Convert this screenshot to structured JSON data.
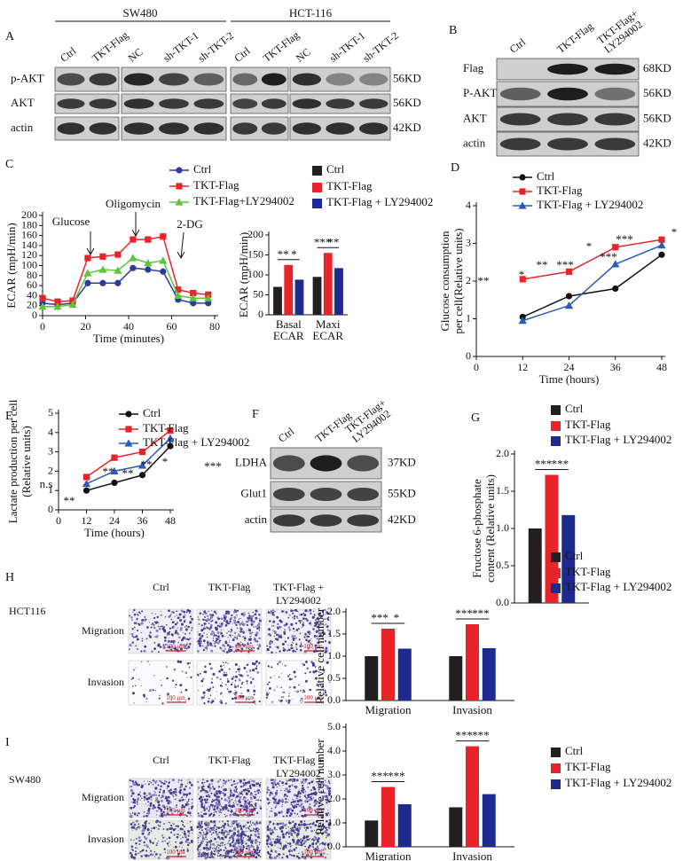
{
  "blots": [
    {
      "label": "A",
      "groups": [
        "SW480",
        "HCT-116"
      ],
      "lanes": [
        "Ctrl",
        "TKT-Flag",
        "NC",
        "sh-TKT-1",
        "sh-TKT-2",
        "Ctrl",
        "TKT-Flag",
        "NC",
        "sh-TKT-1",
        "sh-TKT-2"
      ],
      "rows": [
        "p-AKT",
        "AKT",
        "actin"
      ],
      "sizes": [
        "56KD",
        "56KD",
        "42KD"
      ]
    },
    {
      "label": "B",
      "lanes": [
        "Ctrl",
        "TKT-Flag",
        [
          "TKT-Flag+",
          "LY294002"
        ]
      ],
      "rows": [
        "Flag",
        "P-AKT",
        "AKT",
        "actin"
      ],
      "sizes": [
        "68KD",
        "56KD",
        "56KD",
        "42KD"
      ]
    },
    {
      "label": "F",
      "lanes": [
        "Ctrl",
        "TKT-Flag",
        [
          "TKT-Flag+",
          "LY294002"
        ]
      ],
      "rows": [
        "LDHA",
        "Glut1",
        "actin"
      ],
      "sizes": [
        "37KD",
        "55KD",
        "42KD"
      ]
    }
  ],
  "micrographs": [
    {
      "label": "H",
      "cell": "HCT116",
      "columns": [
        "Ctrl",
        "TKT-Flag",
        [
          "TKT-Flag +",
          "LY294002"
        ]
      ],
      "rows": [
        "Migration",
        "Invasion"
      ],
      "scale_bar": "100 μm"
    },
    {
      "label": "I",
      "cell": "SW480",
      "columns": [
        "Ctrl",
        "TKT-Flag",
        [
          "TKT-Flag +",
          "LY294002"
        ]
      ],
      "rows": [
        "Migration",
        "Invasion"
      ],
      "scale_bar": "100 μm"
    }
  ],
  "chart_data": [
    {
      "type": "line",
      "panel": "C",
      "x": [
        0,
        7,
        14,
        21,
        28,
        35,
        42,
        49,
        56,
        63,
        70,
        77
      ],
      "xlim": [
        0,
        80
      ],
      "xticks": [
        0,
        20,
        40,
        60,
        80
      ],
      "ylim": [
        0,
        200
      ],
      "yticks": [
        0,
        20,
        40,
        60,
        80,
        100,
        120,
        140,
        160,
        180,
        200
      ],
      "xlabel": "Time (minutes)",
      "ylabel": "ECAR (mpH/min)",
      "annotations": [
        "Glucose",
        "Oligomycin",
        "2-DG"
      ],
      "series": [
        {
          "name": "Ctrl",
          "color": "#2a3d9e",
          "marker": "circle",
          "values": [
            25,
            22,
            25,
            65,
            65,
            65,
            95,
            92,
            88,
            32,
            25,
            25
          ]
        },
        {
          "name": "TKT-Flag",
          "color": "#e8232a",
          "marker": "square",
          "values": [
            35,
            28,
            30,
            115,
            118,
            122,
            152,
            152,
            158,
            52,
            45,
            42
          ]
        },
        {
          "name": "TKT-Flag+LY294002",
          "color": "#5cc639",
          "marker": "triangle",
          "values": [
            18,
            18,
            22,
            85,
            92,
            90,
            115,
            105,
            110,
            40,
            35,
            35
          ]
        }
      ]
    },
    {
      "type": "bar",
      "categories": [
        [
          "Basal",
          "ECAR"
        ],
        [
          "Maxi",
          "ECAR"
        ]
      ],
      "ylim": [
        0,
        200
      ],
      "yticks": [
        0,
        50,
        100,
        150,
        200
      ],
      "ylabel": "ECAR (mpH/min)",
      "annotations": [
        "**",
        "*",
        "***",
        "**"
      ],
      "series": [
        {
          "name": "Ctrl",
          "color": "#231f20",
          "values": [
            70,
            95
          ]
        },
        {
          "name": "TKT-Flag",
          "color": "#e8232a",
          "values": [
            125,
            155
          ]
        },
        {
          "name": "TKT-Flag + LY294002",
          "color": "#1f2a8f",
          "values": [
            88,
            117
          ]
        }
      ]
    },
    {
      "type": "line",
      "panel": "D",
      "x": [
        12,
        24,
        36,
        48
      ],
      "xlim": [
        0,
        48
      ],
      "xticks": [
        0,
        12,
        24,
        36,
        48
      ],
      "ylim": [
        0,
        4
      ],
      "yticks": [
        0,
        1,
        2,
        3,
        4
      ],
      "xlabel": "Time (hours)",
      "ylabel": [
        "Glucose consumption",
        "per cell(Relative units)"
      ],
      "annotations": [
        "**",
        "*",
        "**",
        "***",
        "*",
        "***",
        "***",
        "*"
      ],
      "series": [
        {
          "name": "Ctrl",
          "color": "#111111",
          "marker": "circle",
          "values": [
            1.05,
            1.6,
            1.8,
            2.7
          ]
        },
        {
          "name": "TKT-Flag",
          "color": "#e8232a",
          "marker": "square",
          "values": [
            2.05,
            2.25,
            2.9,
            3.1
          ]
        },
        {
          "name": "TKT-Flag + LY294002",
          "color": "#2a5cb8",
          "marker": "triangle",
          "values": [
            0.95,
            1.35,
            2.45,
            2.95
          ]
        }
      ]
    },
    {
      "type": "line",
      "panel": "E",
      "x": [
        12,
        24,
        36,
        48
      ],
      "xlim": [
        0,
        48
      ],
      "xticks": [
        0,
        12,
        24,
        36,
        48
      ],
      "ylim": [
        0,
        5
      ],
      "yticks": [
        0,
        1,
        2,
        3,
        4,
        5
      ],
      "xlabel": "Time (hours)",
      "ylabel": [
        "Lactate production per cell",
        "(Relative units)"
      ],
      "annotations": [
        "n.s",
        "**",
        "**",
        "**",
        "**",
        "*",
        "***"
      ],
      "series": [
        {
          "name": "Ctrl",
          "color": "#111111",
          "marker": "circle",
          "values": [
            1.0,
            1.4,
            1.8,
            3.3
          ]
        },
        {
          "name": "TKT-Flag",
          "color": "#e8232a",
          "marker": "square",
          "values": [
            1.7,
            2.7,
            3.0,
            4.1
          ]
        },
        {
          "name": "TKT-Flag + LY294002",
          "color": "#2a5cb8",
          "marker": "triangle",
          "values": [
            1.35,
            2.0,
            2.3,
            3.7
          ]
        }
      ]
    },
    {
      "type": "bar",
      "panel": "G",
      "ylim": [
        0,
        2
      ],
      "yticks": [
        {
          "value": 0,
          "label": "0.0"
        },
        0.5,
        {
          "value": 1,
          "label": "1.0"
        },
        1.5,
        {
          "value": 2,
          "label": "2.0"
        }
      ],
      "ylabel": [
        "Fructose 6-phosphate",
        "content (Relative units)"
      ],
      "annotations": [
        "***",
        "***"
      ],
      "series": [
        {
          "name": "Ctrl",
          "color": "#231f20",
          "values": [
            1
          ]
        },
        {
          "name": "TKT-Flag",
          "color": "#e8232a",
          "values": [
            1.72
          ]
        },
        {
          "name": "TKT-Flag + LY294002",
          "color": "#1f2a8f",
          "values": [
            1.18
          ]
        }
      ]
    },
    {
      "type": "bar",
      "categories": [
        "Migration",
        "Invasion"
      ],
      "ylim": [
        0,
        2
      ],
      "yticks": [
        {
          "value": 0,
          "label": "0.0"
        },
        0.5,
        {
          "value": 1,
          "label": "1.0"
        },
        1.5,
        {
          "value": 2,
          "label": "2.0"
        }
      ],
      "ylabel": "Relative cell number",
      "annotations": [
        "***",
        "*",
        "***",
        "***"
      ],
      "series": [
        {
          "name": "Ctrl",
          "color": "#231f20",
          "values": [
            1,
            1
          ]
        },
        {
          "name": "TKT-Flag",
          "color": "#e8232a",
          "values": [
            1.62,
            1.72
          ]
        },
        {
          "name": "TKT-Flag + LY294002",
          "color": "#1f2a8f",
          "values": [
            1.17,
            1.18
          ]
        }
      ]
    },
    {
      "type": "bar",
      "categories": [
        "Migration",
        "Invasion"
      ],
      "ylim": [
        0,
        5
      ],
      "yticks": [
        {
          "value": 0,
          "label": "0.0"
        },
        {
          "value": 1,
          "label": "1.0"
        },
        {
          "value": 2,
          "label": "2.0"
        },
        {
          "value": 3,
          "label": "3.0"
        },
        {
          "value": 4,
          "label": "4.0"
        },
        {
          "value": 5,
          "label": "5.0"
        }
      ],
      "ylabel": "Relative cell number",
      "annotations": [
        "***",
        "***",
        "***",
        "***"
      ],
      "series": [
        {
          "name": "Ctrl",
          "color": "#231f20",
          "values": [
            1.1,
            1.65
          ]
        },
        {
          "name": "TKT-Flag",
          "color": "#e8232a",
          "values": [
            2.5,
            4.2
          ]
        },
        {
          "name": "TKT-Flag + LY294002",
          "color": "#1f2a8f",
          "values": [
            1.78,
            2.2
          ]
        }
      ]
    }
  ]
}
